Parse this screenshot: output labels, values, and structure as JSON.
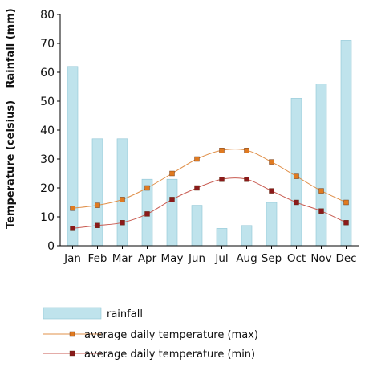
{
  "chart_data": {
    "type": "bar",
    "categories": [
      "Jan",
      "Feb",
      "Mar",
      "Apr",
      "May",
      "Jun",
      "Jul",
      "Aug",
      "Sep",
      "Oct",
      "Nov",
      "Dec"
    ],
    "ylabel_rainfall": "Rainfall (mm)",
    "ylabel_temperature": "Temperature (celsius)",
    "ylim": [
      0,
      80
    ],
    "yticks": [
      "0",
      "10",
      "20",
      "30",
      "40",
      "50",
      "60",
      "70",
      "80"
    ],
    "series": [
      {
        "name": "rainfall",
        "kind": "bar",
        "color": "#bfe3ec",
        "stroke": "#8fc6d6",
        "values": [
          62,
          37,
          37,
          23,
          23,
          14,
          6,
          7,
          15,
          51,
          56,
          71
        ]
      },
      {
        "name": "average daily temperature (max)",
        "kind": "line",
        "color": "#e0904a",
        "marker": "#e07a20",
        "values": [
          13,
          14,
          16,
          20,
          25,
          30,
          33,
          33,
          29,
          24,
          19,
          15
        ]
      },
      {
        "name": "average daily temperature (min)",
        "kind": "line",
        "color": "#c85a50",
        "marker": "#8b1a1a",
        "values": [
          6,
          7,
          8,
          11,
          16,
          20,
          23,
          23,
          19,
          15,
          12,
          8
        ]
      }
    ],
    "legend_position": "bottom",
    "grid": false
  }
}
